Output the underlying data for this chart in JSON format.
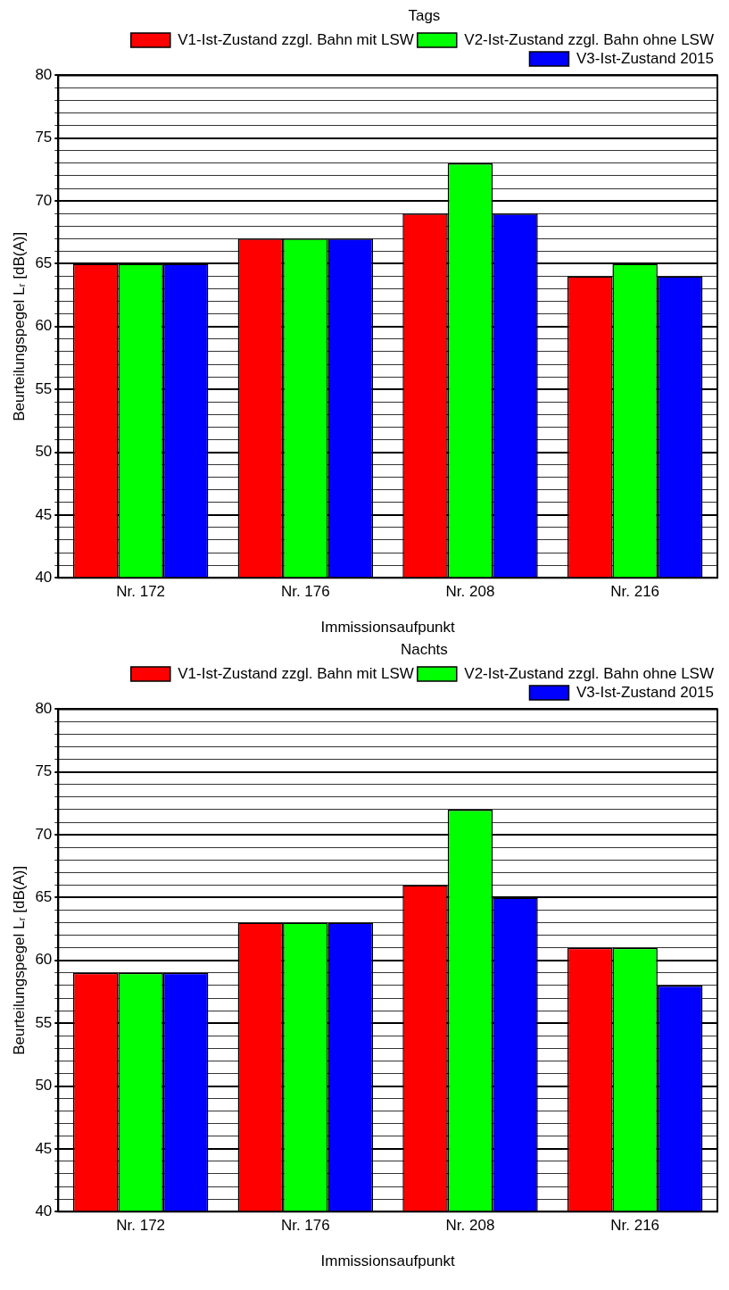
{
  "chart_data": [
    {
      "type": "bar",
      "categories": [
        "Nr. 172",
        "Nr. 176",
        "Nr. 208",
        "Nr. 216"
      ],
      "xlabel": "Immissionsaufpunkt",
      "ylabel": "Beurteilungspegel Lᵣ [dB(A)]",
      "legend_title": "Tags",
      "legend": "top right",
      "grid": "y",
      "ylim": [
        40,
        80
      ],
      "yticks": [
        40,
        {
          "value": 41,
          "label": null
        },
        {
          "value": 42,
          "label": null
        },
        {
          "value": 43,
          "label": null
        },
        {
          "value": 44,
          "label": null
        },
        45,
        {
          "value": 46,
          "label": null
        },
        {
          "value": 47,
          "label": null
        },
        {
          "value": 48,
          "label": null
        },
        {
          "value": 49,
          "label": null
        },
        50,
        {
          "value": 51,
          "label": null
        },
        {
          "value": 52,
          "label": null
        },
        {
          "value": 53,
          "label": null
        },
        {
          "value": 54,
          "label": null
        },
        55,
        {
          "value": 56,
          "label": null
        },
        {
          "value": 57,
          "label": null
        },
        {
          "value": 58,
          "label": null
        },
        {
          "value": 59,
          "label": null
        },
        60,
        {
          "value": 61,
          "label": null
        },
        {
          "value": 62,
          "label": null
        },
        {
          "value": 63,
          "label": null
        },
        {
          "value": 64,
          "label": null
        },
        65,
        {
          "value": 66,
          "label": null
        },
        {
          "value": 67,
          "label": null
        },
        {
          "value": 68,
          "label": null
        },
        {
          "value": 69,
          "label": null
        },
        70,
        {
          "value": 71,
          "label": null
        },
        {
          "value": 72,
          "label": null
        },
        {
          "value": 73,
          "label": null
        },
        {
          "value": 74,
          "label": null
        },
        75,
        {
          "value": 76,
          "label": null
        },
        {
          "value": 77,
          "label": null
        },
        {
          "value": 78,
          "label": null
        },
        {
          "value": 79,
          "label": null
        },
        80
      ],
      "series": [
        {
          "name": "V1-Ist-Zustand zzgl. Bahn mit LSW",
          "color": "#ff0000",
          "values": [
            65,
            67,
            69,
            64
          ]
        },
        {
          "name": "V2-Ist-Zustand zzgl. Bahn ohne LSW",
          "color": "#00ff00",
          "values": [
            65,
            67,
            73,
            65
          ]
        },
        {
          "name": "V3-Ist-Zustand 2015",
          "color": "#0000ff",
          "values": [
            65,
            67,
            69,
            64
          ]
        }
      ]
    },
    {
      "type": "bar",
      "categories": [
        "Nr. 172",
        "Nr. 176",
        "Nr. 208",
        "Nr. 216"
      ],
      "xlabel": "Immissionsaufpunkt",
      "ylabel": "Beurteilungspegel Lᵣ [dB(A)]",
      "legend_title": "Nachts",
      "legend": "top right",
      "grid": "y",
      "ylim": [
        40,
        80
      ],
      "yticks": [
        40,
        {
          "value": 41,
          "label": null
        },
        {
          "value": 42,
          "label": null
        },
        {
          "value": 43,
          "label": null
        },
        {
          "value": 44,
          "label": null
        },
        45,
        {
          "value": 46,
          "label": null
        },
        {
          "value": 47,
          "label": null
        },
        {
          "value": 48,
          "label": null
        },
        {
          "value": 49,
          "label": null
        },
        50,
        {
          "value": 51,
          "label": null
        },
        {
          "value": 52,
          "label": null
        },
        {
          "value": 53,
          "label": null
        },
        {
          "value": 54,
          "label": null
        },
        55,
        {
          "value": 56,
          "label": null
        },
        {
          "value": 57,
          "label": null
        },
        {
          "value": 58,
          "label": null
        },
        {
          "value": 59,
          "label": null
        },
        60,
        {
          "value": 61,
          "label": null
        },
        {
          "value": 62,
          "label": null
        },
        {
          "value": 63,
          "label": null
        },
        {
          "value": 64,
          "label": null
        },
        65,
        {
          "value": 66,
          "label": null
        },
        {
          "value": 67,
          "label": null
        },
        {
          "value": 68,
          "label": null
        },
        {
          "value": 69,
          "label": null
        },
        70,
        {
          "value": 71,
          "label": null
        },
        {
          "value": 72,
          "label": null
        },
        {
          "value": 73,
          "label": null
        },
        {
          "value": 74,
          "label": null
        },
        75,
        {
          "value": 76,
          "label": null
        },
        {
          "value": 77,
          "label": null
        },
        {
          "value": 78,
          "label": null
        },
        {
          "value": 79,
          "label": null
        },
        80
      ],
      "series": [
        {
          "name": "V1-Ist-Zustand zzgl. Bahn mit LSW",
          "color": "#ff0000",
          "values": [
            59,
            63,
            66,
            61
          ]
        },
        {
          "name": "V2-Ist-Zustand zzgl. Bahn ohne LSW",
          "color": "#00ff00",
          "values": [
            59,
            63,
            72,
            61
          ]
        },
        {
          "name": "V3-Ist-Zustand 2015",
          "color": "#0000ff",
          "values": [
            59,
            63,
            65,
            58
          ]
        }
      ]
    }
  ]
}
